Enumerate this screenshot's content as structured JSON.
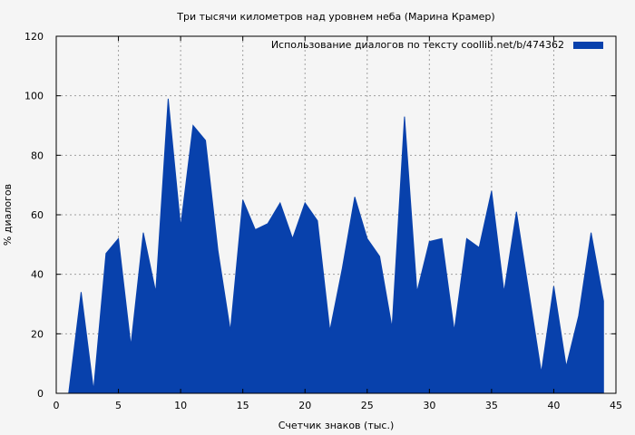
{
  "chart_data": {
    "type": "area",
    "title": "Три тысячи километров над уровнем неба (Марина Крамер)",
    "xlabel": "Счетчик знаков (тыс.)",
    "ylabel": "% диалогов",
    "xlim": [
      0,
      45
    ],
    "ylim": [
      0,
      120
    ],
    "x_ticks": [
      0,
      5,
      10,
      15,
      20,
      25,
      30,
      35,
      40,
      45
    ],
    "y_ticks": [
      0,
      20,
      40,
      60,
      80,
      100,
      120
    ],
    "grid": true,
    "legend_position": "top-right",
    "series": [
      {
        "name": "Использование диалогов по тексту  coollib.net/b/474362",
        "color": "#0841ac",
        "x": [
          1,
          2,
          3,
          4,
          5,
          6,
          7,
          8,
          9,
          10,
          11,
          12,
          13,
          14,
          15,
          16,
          17,
          18,
          19,
          20,
          21,
          22,
          23,
          24,
          25,
          26,
          27,
          28,
          29,
          30,
          31,
          32,
          33,
          34,
          35,
          36,
          37,
          38,
          39,
          40,
          41,
          42,
          43,
          44
        ],
        "values": [
          0,
          34,
          1,
          47,
          52,
          16,
          54,
          34,
          99,
          56,
          90,
          85,
          48,
          21,
          65,
          55,
          57,
          64,
          52,
          64,
          58,
          21,
          42,
          66,
          52,
          46,
          22,
          93,
          34,
          51,
          52,
          21,
          52,
          49,
          68,
          34,
          61,
          34,
          7,
          36,
          9,
          26,
          54,
          31
        ]
      }
    ]
  }
}
